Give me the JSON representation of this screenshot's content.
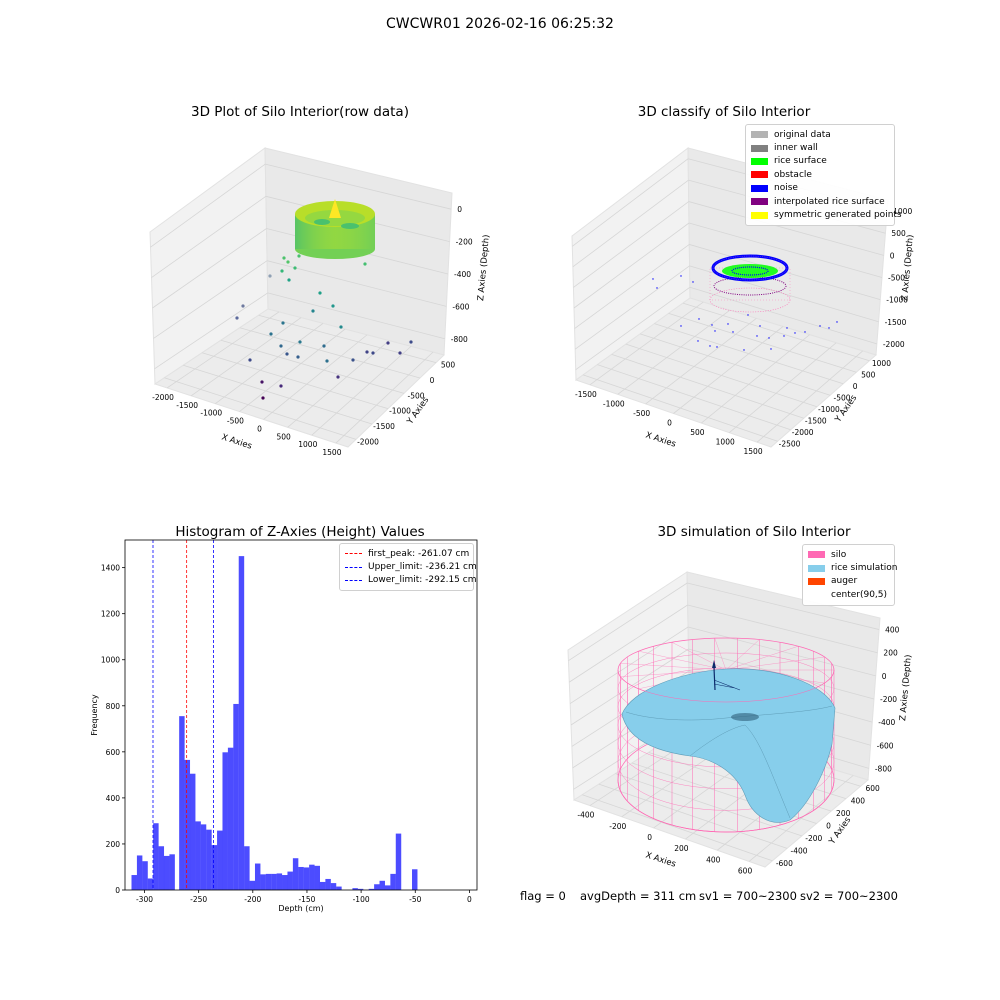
{
  "figure": {
    "suptitle": "CWCWR01 2026-02-16 06:25:32"
  },
  "colors": {
    "pane": "#f2f2f2",
    "grid": "#d6d6d6",
    "hist": "#0000ff",
    "peak": "#ff0000",
    "limit": "#0000ff",
    "silo": "#ff69b4",
    "rice": "#87ceeb",
    "auger": "#ff4500",
    "original": "#b3b3b3",
    "inner_wall": "#808080",
    "rice_surface": "#00ff00",
    "obstacle": "#ff0000",
    "noise": "#0000ff",
    "interpolated": "#800080",
    "symmetric": "#ffff00"
  },
  "chart_data": [
    {
      "type": "scatter",
      "projection": "3d",
      "title": "3D Plot of Silo Interior(row data)",
      "xlabel": "X Axies",
      "ylabel": "Y Axies",
      "zlabel": "Z Axies (Depth)",
      "xticks": [
        "-2000",
        "-1500",
        "-1000",
        "-500",
        "0",
        "500",
        "1000",
        "1500"
      ],
      "yticks": [
        "-2000",
        "-1500",
        "-1000",
        "-500",
        "0",
        "500"
      ],
      "zticks": [
        "-800",
        "-600",
        "-400",
        "-200",
        "0"
      ],
      "colormap": "viridis"
    },
    {
      "type": "scatter",
      "projection": "3d",
      "title": "3D classify of Silo Interior",
      "xlabel": "X Axies",
      "ylabel": "Y Axies",
      "zlabel": "Z Axies (Depth)",
      "xticks": [
        "-1500",
        "-1000",
        "-500",
        "0",
        "500",
        "1000",
        "1500"
      ],
      "yticks": [
        "-2500",
        "-2000",
        "-1500",
        "-1000",
        "-500",
        "0",
        "500",
        "1000"
      ],
      "zticks": [
        "-2000",
        "-1500",
        "-1000",
        "-500",
        "0",
        "500",
        "1000"
      ],
      "legend_position": "upper right",
      "legend": [
        {
          "label": "original data",
          "color": "#b3b3b3"
        },
        {
          "label": "inner wall",
          "color": "#808080"
        },
        {
          "label": "rice surface",
          "color": "#00ff00"
        },
        {
          "label": "obstacle",
          "color": "#ff0000"
        },
        {
          "label": "noise",
          "color": "#0000ff"
        },
        {
          "label": "interpolated rice surface",
          "color": "#800080"
        },
        {
          "label": "symmetric generated points",
          "color": "#ffff00"
        }
      ]
    },
    {
      "type": "bar",
      "title": "Histogram of Z-Axies (Height) Values",
      "xlabel": "Depth (cm)",
      "ylabel": "Frequency",
      "xlim": [
        -318,
        7
      ],
      "ylim": [
        0,
        1520
      ],
      "xticks": [
        -300,
        -250,
        -200,
        -150,
        -100,
        -50,
        0
      ],
      "yticks": [
        0,
        200,
        400,
        600,
        800,
        1000,
        1200,
        1400
      ],
      "bin_width": 5.04,
      "bins": [
        [
          -312.0,
          65
        ],
        [
          -307.0,
          150
        ],
        [
          -302.0,
          125
        ],
        [
          -297.0,
          50
        ],
        [
          -292.0,
          290
        ],
        [
          -287.0,
          190
        ],
        [
          -282.0,
          148
        ],
        [
          -277.0,
          155
        ],
        [
          -268.0,
          755
        ],
        [
          -263.0,
          565
        ],
        [
          -258.0,
          505
        ],
        [
          -253.0,
          298
        ],
        [
          -248.0,
          285
        ],
        [
          -243.0,
          262
        ],
        [
          -238.0,
          195
        ],
        [
          -233.0,
          258
        ],
        [
          -228.0,
          598
        ],
        [
          -223.0,
          618
        ],
        [
          -218.0,
          808
        ],
        [
          -213.0,
          1450
        ],
        [
          -208.0,
          190
        ],
        [
          -203.0,
          40
        ],
        [
          -198.0,
          115
        ],
        [
          -193.0,
          68
        ],
        [
          -188.0,
          70
        ],
        [
          -183.0,
          70
        ],
        [
          -178.0,
          72
        ],
        [
          -173.0,
          65
        ],
        [
          -168.0,
          80
        ],
        [
          -163.0,
          138
        ],
        [
          -158.0,
          100
        ],
        [
          -153.0,
          98
        ],
        [
          -148.0,
          110
        ],
        [
          -143.0,
          105
        ],
        [
          -138.0,
          35
        ],
        [
          -133.0,
          48
        ],
        [
          -128.0,
          30
        ],
        [
          -123.0,
          15
        ],
        [
          -108.0,
          8
        ],
        [
          -103.0,
          5
        ],
        [
          -93.0,
          5
        ],
        [
          -88.0,
          25
        ],
        [
          -83.0,
          40
        ],
        [
          -78.0,
          20
        ],
        [
          -73.0,
          70
        ],
        [
          -68.0,
          245
        ],
        [
          -53.0,
          90
        ]
      ],
      "vlines": [
        {
          "label": "first_peak: -261.07 cm",
          "x": -261.07,
          "color": "#ff0000"
        },
        {
          "label": "Upper_limit: -236.21 cm",
          "x": -236.21,
          "color": "#0000ff"
        },
        {
          "label": "Lower_limit: -292.15 cm",
          "x": -292.15,
          "color": "#0000ff"
        }
      ],
      "legend_position": "upper right"
    },
    {
      "type": "surface",
      "projection": "3d",
      "title": "3D simulation of Silo Interior",
      "xlabel": "X Axies",
      "ylabel": "Y Axies",
      "zlabel": "Z Axies (Depth)",
      "xticks": [
        "-400",
        "-200",
        "0",
        "200",
        "400",
        "600"
      ],
      "yticks": [
        "-600",
        "-400",
        "-200",
        "0",
        "200",
        "400",
        "600"
      ],
      "zticks": [
        "-800",
        "-600",
        "-400",
        "-200",
        "0",
        "200",
        "400"
      ],
      "legend_position": "upper right",
      "legend": [
        {
          "label": "silo",
          "color": "#ff69b4"
        },
        {
          "label": "rice simulation",
          "color": "#87ceeb"
        },
        {
          "label": "auger",
          "color": "#ff4500"
        },
        {
          "label": "center(90,5)",
          "color": ""
        }
      ]
    }
  ],
  "footer": {
    "flag": "flag = 0",
    "avg": "avgDepth = 311 cm",
    "sv1": "sv1 = 700~2300",
    "sv2": "sv2 = 700~2300"
  }
}
